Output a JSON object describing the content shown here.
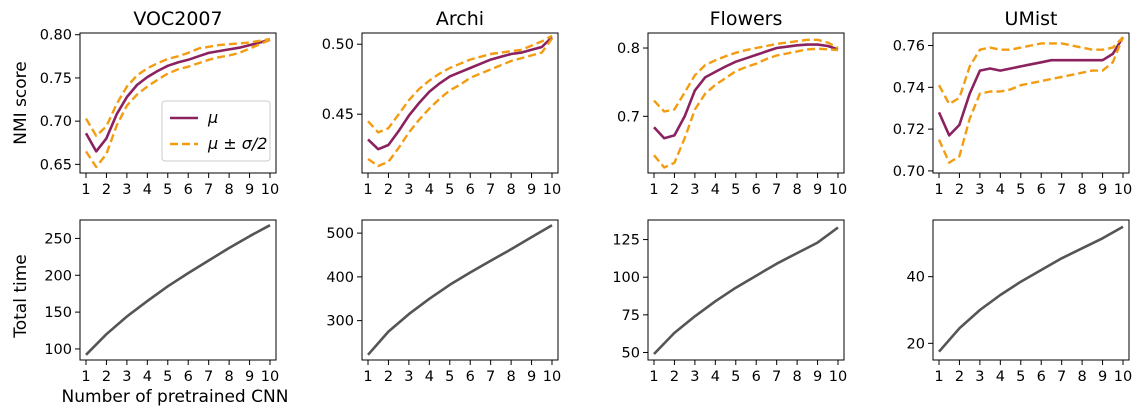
{
  "figure": {
    "ylabel_top": "NMI score",
    "ylabel_bottom": "Total time",
    "xlabel": "Number of pretrained CNN"
  },
  "legend": {
    "mean": "μ",
    "band": "μ ± σ/2"
  },
  "colors": {
    "mean": "#8B2260",
    "band": "#F39C12",
    "time": "#555555"
  },
  "chart_data": [
    {
      "type": "line",
      "title": "VOC2007",
      "row": "NMI",
      "x": [
        1,
        1.5,
        2,
        2.5,
        3,
        3.5,
        4,
        4.5,
        5,
        5.5,
        6,
        6.5,
        7,
        7.5,
        8,
        8.5,
        9,
        9.5,
        10
      ],
      "ylim": [
        0.64,
        0.802
      ],
      "yticks": [
        0.65,
        0.7,
        0.75,
        0.8
      ],
      "yticklabels": [
        "0.65",
        "0.70",
        "0.75",
        "0.80"
      ],
      "series": [
        {
          "name": "μ",
          "style": "mean",
          "values": [
            0.686,
            0.665,
            0.68,
            0.708,
            0.728,
            0.742,
            0.751,
            0.758,
            0.764,
            0.768,
            0.771,
            0.775,
            0.779,
            0.781,
            0.783,
            0.785,
            0.788,
            0.791,
            0.794
          ]
        },
        {
          "style": "upper",
          "values": [
            0.703,
            0.683,
            0.694,
            0.72,
            0.74,
            0.753,
            0.761,
            0.767,
            0.772,
            0.775,
            0.779,
            0.784,
            0.786,
            0.788,
            0.789,
            0.79,
            0.791,
            0.793,
            0.795
          ]
        },
        {
          "style": "lower",
          "values": [
            0.665,
            0.647,
            0.662,
            0.695,
            0.718,
            0.731,
            0.74,
            0.748,
            0.755,
            0.76,
            0.763,
            0.767,
            0.771,
            0.774,
            0.776,
            0.779,
            0.784,
            0.789,
            0.794
          ]
        }
      ]
    },
    {
      "type": "line",
      "title": "Archi",
      "row": "NMI",
      "x": [
        1,
        1.5,
        2,
        2.5,
        3,
        3.5,
        4,
        4.5,
        5,
        5.5,
        6,
        6.5,
        7,
        7.5,
        8,
        8.5,
        9,
        9.5,
        10
      ],
      "ylim": [
        0.408,
        0.508
      ],
      "yticks": [
        0.45,
        0.5
      ],
      "yticklabels": [
        "0.45",
        "0.50"
      ],
      "series": [
        {
          "name": "μ",
          "style": "mean",
          "values": [
            0.432,
            0.425,
            0.428,
            0.438,
            0.449,
            0.458,
            0.466,
            0.472,
            0.477,
            0.48,
            0.483,
            0.486,
            0.489,
            0.491,
            0.493,
            0.494,
            0.496,
            0.498,
            0.505
          ]
        },
        {
          "style": "upper",
          "values": [
            0.445,
            0.437,
            0.44,
            0.45,
            0.46,
            0.468,
            0.474,
            0.479,
            0.483,
            0.486,
            0.489,
            0.491,
            0.493,
            0.494,
            0.495,
            0.496,
            0.499,
            0.502,
            0.506
          ]
        },
        {
          "style": "lower",
          "values": [
            0.418,
            0.413,
            0.416,
            0.426,
            0.437,
            0.446,
            0.454,
            0.461,
            0.467,
            0.471,
            0.476,
            0.479,
            0.482,
            0.485,
            0.488,
            0.49,
            0.492,
            0.494,
            0.504
          ]
        }
      ]
    },
    {
      "type": "line",
      "title": "Flowers",
      "row": "NMI",
      "x": [
        1,
        1.5,
        2,
        2.5,
        3,
        3.5,
        4,
        4.5,
        5,
        5.5,
        6,
        6.5,
        7,
        7.5,
        8,
        8.5,
        9,
        9.5,
        10
      ],
      "ylim": [
        0.617,
        0.822
      ],
      "yticks": [
        0.7,
        0.8
      ],
      "yticklabels": [
        "0.7",
        "0.8"
      ],
      "series": [
        {
          "name": "μ",
          "style": "mean",
          "values": [
            0.684,
            0.668,
            0.672,
            0.7,
            0.738,
            0.757,
            0.765,
            0.773,
            0.78,
            0.785,
            0.79,
            0.795,
            0.8,
            0.802,
            0.804,
            0.805,
            0.805,
            0.803,
            0.798
          ]
        },
        {
          "style": "upper",
          "values": [
            0.723,
            0.707,
            0.71,
            0.735,
            0.76,
            0.775,
            0.782,
            0.788,
            0.793,
            0.797,
            0.8,
            0.803,
            0.806,
            0.808,
            0.81,
            0.812,
            0.812,
            0.808,
            0.8
          ]
        },
        {
          "style": "lower",
          "values": [
            0.643,
            0.625,
            0.632,
            0.668,
            0.71,
            0.733,
            0.746,
            0.756,
            0.766,
            0.772,
            0.777,
            0.784,
            0.789,
            0.792,
            0.795,
            0.798,
            0.799,
            0.798,
            0.797
          ]
        }
      ]
    },
    {
      "type": "line",
      "title": "UMist",
      "row": "NMI",
      "x": [
        1,
        1.5,
        2,
        2.5,
        3,
        3.5,
        4,
        4.5,
        5,
        5.5,
        6,
        6.5,
        7,
        7.5,
        8,
        8.5,
        9,
        9.5,
        10
      ],
      "ylim": [
        0.699,
        0.766
      ],
      "yticks": [
        0.7,
        0.72,
        0.74,
        0.76
      ],
      "yticklabels": [
        "0.70",
        "0.72",
        "0.74",
        "0.76"
      ],
      "series": [
        {
          "name": "μ",
          "style": "mean",
          "values": [
            0.728,
            0.717,
            0.722,
            0.737,
            0.748,
            0.749,
            0.748,
            0.749,
            0.75,
            0.751,
            0.752,
            0.753,
            0.753,
            0.753,
            0.753,
            0.753,
            0.753,
            0.756,
            0.764
          ]
        },
        {
          "style": "upper",
          "values": [
            0.741,
            0.732,
            0.735,
            0.75,
            0.758,
            0.759,
            0.758,
            0.758,
            0.759,
            0.76,
            0.761,
            0.761,
            0.761,
            0.76,
            0.759,
            0.758,
            0.758,
            0.759,
            0.764
          ]
        },
        {
          "style": "lower",
          "values": [
            0.715,
            0.704,
            0.707,
            0.725,
            0.737,
            0.738,
            0.738,
            0.739,
            0.741,
            0.742,
            0.743,
            0.744,
            0.745,
            0.746,
            0.747,
            0.748,
            0.748,
            0.752,
            0.764
          ]
        }
      ]
    },
    {
      "type": "line",
      "row": "time",
      "x": [
        1,
        2,
        3,
        4,
        5,
        6,
        7,
        8,
        9,
        10
      ],
      "ylim": [
        85,
        275
      ],
      "yticks": [
        100,
        150,
        200,
        250
      ],
      "yticklabels": [
        "100",
        "150",
        "200",
        "250"
      ],
      "series": [
        {
          "style": "time",
          "values": [
            92,
            120,
            144,
            165,
            185,
            203,
            220,
            237,
            253,
            268
          ]
        }
      ]
    },
    {
      "type": "line",
      "row": "time",
      "x": [
        1,
        2,
        3,
        4,
        5,
        6,
        7,
        8,
        9,
        10
      ],
      "ylim": [
        210,
        530
      ],
      "yticks": [
        300,
        400,
        500
      ],
      "yticklabels": [
        "300",
        "400",
        "500"
      ],
      "series": [
        {
          "style": "time",
          "values": [
            222,
            275,
            315,
            350,
            382,
            410,
            437,
            463,
            491,
            518
          ]
        }
      ]
    },
    {
      "type": "line",
      "row": "time",
      "x": [
        1,
        2,
        3,
        4,
        5,
        6,
        7,
        8,
        9,
        10
      ],
      "ylim": [
        45,
        138
      ],
      "yticks": [
        50,
        75,
        100,
        125
      ],
      "yticklabels": [
        "50",
        "75",
        "100",
        "125"
      ],
      "series": [
        {
          "style": "time",
          "values": [
            49,
            63,
            74,
            84,
            93,
            101,
            109,
            116,
            123,
            133
          ]
        }
      ]
    },
    {
      "type": "line",
      "row": "time",
      "x": [
        1,
        2,
        3,
        4,
        5,
        6,
        7,
        8,
        9,
        10
      ],
      "ylim": [
        15,
        57
      ],
      "yticks": [
        20,
        40
      ],
      "yticklabels": [
        "20",
        "40"
      ],
      "series": [
        {
          "style": "time",
          "values": [
            17.5,
            24.5,
            30,
            34.5,
            38.5,
            42,
            45.5,
            48.5,
            51.5,
            55
          ]
        }
      ]
    }
  ]
}
